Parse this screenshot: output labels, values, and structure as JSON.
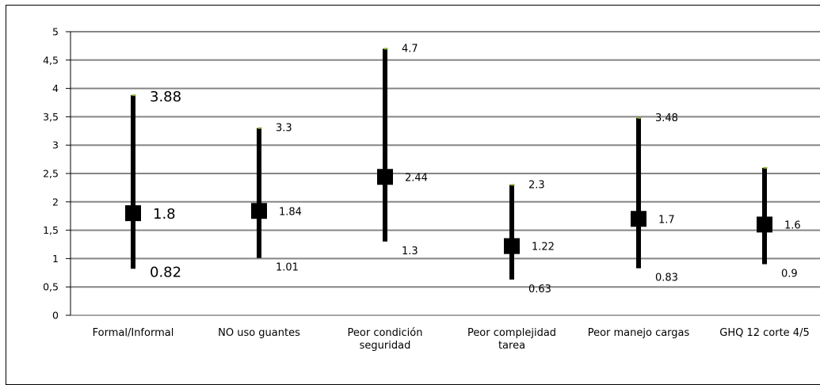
{
  "chart_data": {
    "type": "error_bar",
    "ylim": [
      0,
      5
    ],
    "yticks": [
      "0",
      "0,5",
      "1",
      "1,5",
      "2",
      "2,5",
      "3",
      "3,5",
      "4",
      "4,5",
      "5"
    ],
    "grid": true,
    "categories": [
      [
        "Formal/Informal"
      ],
      [
        "NO uso guantes"
      ],
      [
        "Peor condición",
        "seguridad"
      ],
      [
        "Peor complejidad",
        "tarea"
      ],
      [
        "Peor manejo cargas"
      ],
      [
        "GHQ 12 corte 4/5"
      ]
    ],
    "points": [
      {
        "estimate": 1.8,
        "lower": 0.82,
        "upper": 3.88,
        "estimate_label": "1.8",
        "lower_label": "0.82",
        "upper_label": "3.88"
      },
      {
        "estimate": 1.84,
        "lower": 1.01,
        "upper": 3.3,
        "estimate_label": "1.84",
        "lower_label": "1.01",
        "upper_label": "3.3"
      },
      {
        "estimate": 2.44,
        "lower": 1.3,
        "upper": 4.7,
        "estimate_label": "2.44",
        "lower_label": "1.3",
        "upper_label": "4.7"
      },
      {
        "estimate": 1.22,
        "lower": 0.63,
        "upper": 2.3,
        "estimate_label": "1.22",
        "lower_label": "0.63",
        "upper_label": "2.3"
      },
      {
        "estimate": 1.7,
        "lower": 0.83,
        "upper": 3.48,
        "estimate_label": "1.7",
        "lower_label": "0.83",
        "upper_label": "3.48"
      },
      {
        "estimate": 1.6,
        "lower": 0.9,
        "upper": 2.6,
        "estimate_label": "1.6",
        "lower_label": "0.9",
        "upper_label": ""
      }
    ],
    "colors": {
      "bar": "#000000",
      "marker": "#000000",
      "cap": "#8db83a",
      "grid": "#858585"
    }
  }
}
